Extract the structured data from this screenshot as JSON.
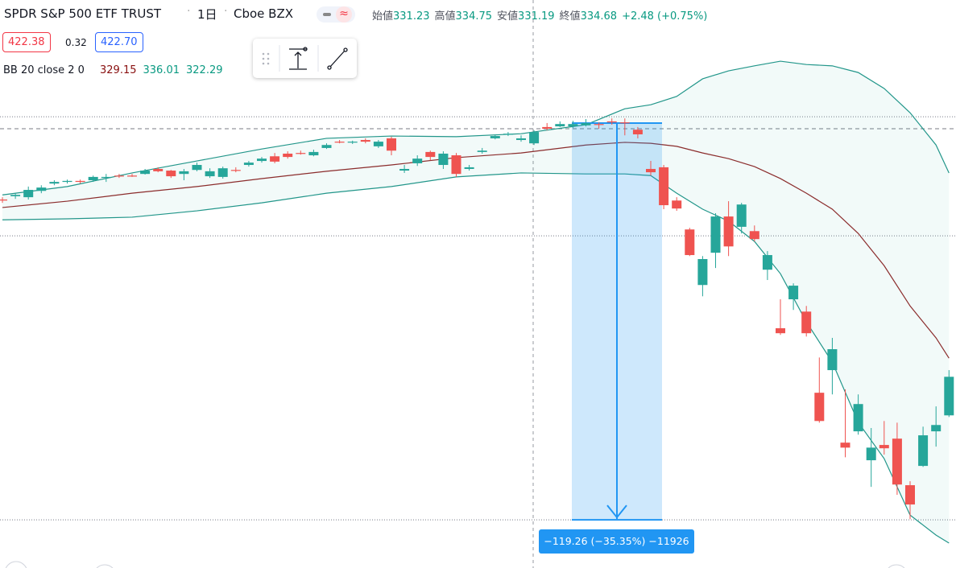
{
  "chart_data": {
    "type": "candlestick",
    "title": "SPDR S&P 500 ETF TRUST",
    "interval": "1日",
    "exchange": "Cboe BZX",
    "ohlc_legend": [
      {
        "label": "始値",
        "value": "331.23"
      },
      {
        "label": "高値",
        "value": "334.75"
      },
      {
        "label": "安値",
        "value": "331.19"
      },
      {
        "label": "終値",
        "value": "334.68"
      }
    ],
    "change": "+2.48 (+0.75%)",
    "sell": "422.38",
    "spread": "0.32",
    "buy": "422.70",
    "indicator": {
      "name": "BB 20 close 2 0",
      "values": [
        "329.15",
        "336.01",
        "322.29"
      ],
      "colors": [
        "#880e0e",
        "#089981",
        "#089981"
      ]
    },
    "up_color": "#26a69a",
    "down_color": "#ef5350",
    "ylim": [
      203.6,
      374.4
    ],
    "open": [
      314.4,
      315.4,
      315.1,
      317.0,
      319.2,
      319.7,
      320.0,
      320.2,
      320.9,
      321.6,
      321.6,
      322.1,
      323.6,
      323.1,
      322.1,
      323.3,
      321.4,
      321.2,
      323.3,
      324.8,
      326.0,
      327.4,
      328.2,
      328.4,
      327.7,
      329.9,
      331.8,
      331.6,
      332.3,
      330.4,
      332.8,
      323.1,
      325.3,
      328.7,
      324.8,
      327.7,
      323.6,
      328.7,
      332.8,
      334.0,
      332.3,
      331.3,
      336.2,
      336.4,
      336.4,
      336.7,
      337.1,
      337.9,
      337.6,
      335.4,
      323.6,
      324.1,
      314.1,
      305.4,
      288.7,
      298.4,
      309.3,
      306.2,
      304.9,
      293.3,
      275.7,
      284.4,
      280.7,
      256.3,
      263.1,
      241.3,
      244.7,
      236.0,
      240.6,
      242.5,
      228.5,
      234.3,
      244.7,
      249.5
    ],
    "high": [
      315.1,
      316.3,
      318.3,
      318.7,
      320.2,
      320.4,
      320.4,
      321.6,
      322.1,
      322.1,
      322.1,
      323.6,
      324.1,
      323.3,
      323.6,
      325.5,
      323.8,
      324.3,
      324.1,
      326.0,
      327.2,
      328.4,
      328.9,
      329.1,
      329.4,
      331.3,
      332.3,
      332.1,
      332.8,
      332.3,
      333.3,
      324.8,
      327.7,
      329.1,
      328.9,
      328.4,
      324.8,
      329.9,
      334.0,
      334.7,
      333.7,
      335.2,
      337.4,
      337.9,
      338.1,
      338.6,
      337.6,
      338.8,
      338.8,
      336.2,
      326.0,
      324.8,
      315.1,
      305.9,
      297.4,
      310.3,
      313.9,
      313.4,
      306.6,
      298.9,
      284.4,
      289.2,
      282.4,
      266.9,
      272.8,
      257.3,
      255.8,
      245.7,
      247.8,
      247.3,
      229.7,
      246.1,
      252.2,
      263.1
    ],
    "low": [
      313.4,
      314.6,
      314.4,
      316.3,
      318.7,
      319.2,
      319.2,
      319.7,
      319.7,
      320.9,
      321.2,
      321.9,
      322.6,
      320.9,
      320.2,
      322.9,
      320.9,
      320.7,
      322.6,
      324.3,
      325.5,
      325.3,
      326.7,
      327.9,
      327.4,
      329.6,
      331.3,
      331.1,
      331.3,
      329.9,
      327.7,
      322.4,
      324.5,
      326.2,
      323.6,
      321.2,
      323.1,
      328.2,
      332.5,
      333.5,
      331.8,
      330.8,
      335.2,
      336.2,
      335.9,
      336.4,
      335.7,
      336.9,
      333.7,
      332.8,
      321.6,
      311.5,
      311.0,
      297.4,
      285.3,
      293.8,
      297.4,
      304.2,
      301.8,
      290.2,
      273.7,
      281.2,
      273.2,
      247.3,
      255.8,
      236.9,
      243.7,
      228.0,
      237.7,
      225.6,
      218.3,
      234.0,
      240.1,
      249.0
    ],
    "close": [
      314.1,
      315.8,
      317.3,
      318.0,
      319.7,
      320.0,
      319.7,
      321.2,
      321.2,
      321.4,
      321.4,
      323.1,
      322.9,
      321.4,
      322.9,
      324.8,
      322.9,
      323.8,
      323.1,
      325.5,
      326.7,
      325.8,
      327.2,
      328.2,
      328.7,
      330.8,
      331.6,
      331.8,
      331.8,
      331.8,
      329.1,
      323.6,
      326.7,
      327.2,
      328.2,
      322.1,
      324.1,
      329.1,
      333.5,
      334.2,
      332.8,
      334.7,
      335.7,
      337.1,
      337.1,
      337.4,
      336.9,
      337.6,
      337.4,
      334.0,
      322.6,
      312.7,
      311.7,
      297.7,
      296.5,
      309.3,
      300.3,
      312.9,
      302.5,
      297.7,
      274.2,
      288.5,
      274.2,
      247.8,
      269.4,
      239.8,
      252.9,
      239.8,
      239.6,
      228.7,
      222.7,
      243.5,
      246.6,
      261.1
    ],
    "bands": {
      "x": [
        0,
        5,
        10,
        15,
        20,
        25,
        30,
        35,
        40,
        45,
        48,
        50,
        52,
        54,
        56,
        58,
        60,
        62,
        64,
        66,
        68,
        70,
        72,
        73
      ],
      "upper": [
        315.8,
        318.3,
        322.4,
        326.0,
        329.6,
        332.8,
        333.5,
        333.3,
        334.2,
        336.9,
        341.7,
        342.9,
        345.4,
        350.7,
        353.1,
        354.6,
        356.0,
        355.0,
        354.6,
        352.6,
        347.8,
        340.5,
        330.8,
        322.4
      ],
      "middle": [
        312.0,
        313.9,
        316.3,
        318.3,
        320.7,
        322.9,
        324.8,
        327.0,
        328.4,
        330.8,
        331.6,
        331.3,
        330.4,
        328.4,
        326.7,
        324.3,
        320.7,
        316.3,
        311.5,
        304.2,
        294.5,
        282.4,
        272.8,
        266.7
      ],
      "lower": [
        308.3,
        308.6,
        309.1,
        311.0,
        313.4,
        316.3,
        318.3,
        321.2,
        322.4,
        322.1,
        322.1,
        321.6,
        316.3,
        311.5,
        307.9,
        301.8,
        292.1,
        277.6,
        265.5,
        247.4,
        236.5,
        219.5,
        213.5,
        211.1
      ],
      "upper_color": "#22968a",
      "middle_color": "#8b2c2c",
      "lower_color": "#22968a"
    },
    "price_lines": [
      339.3,
      335.7,
      303.5,
      218.1
    ],
    "measure": {
      "from": 337.4,
      "to": 218.1,
      "label": "−119.26 (−35.35%) −11926"
    }
  }
}
